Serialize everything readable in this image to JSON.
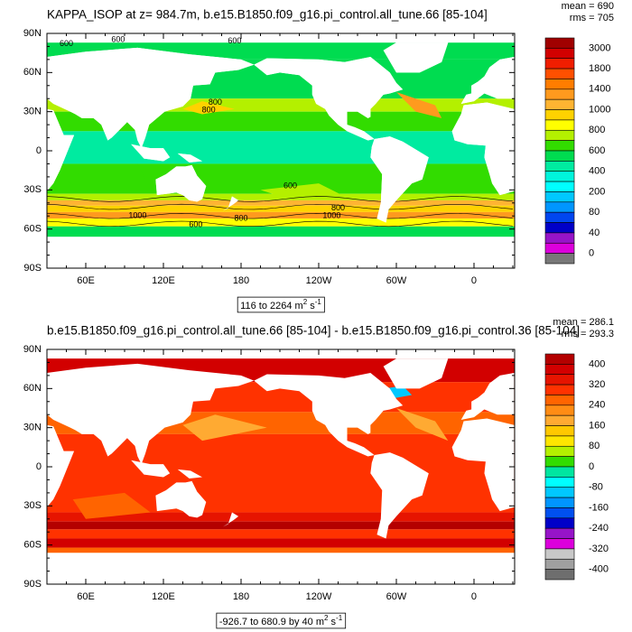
{
  "panels": [
    {
      "title": "KAPPA_ISOP at z= 984.7m, b.e15.B1850.f09_g16.pi_control.all_tune.66 [85-104]",
      "stats": [
        "mean = 690",
        "rms = 705"
      ],
      "y_labels": [
        "90N",
        "60N",
        "30N",
        "0",
        "30S",
        "60S",
        "90S"
      ],
      "x_labels": [
        "60E",
        "120E",
        "180",
        "120W",
        "60W",
        "0"
      ],
      "range_label": [
        "116 to 2264 m",
        "2",
        " s",
        "-1"
      ],
      "contour_labels": [
        "600",
        "600",
        "600",
        "800",
        "800",
        "600",
        "1000",
        "800",
        "1000",
        "800",
        "600"
      ],
      "colorbar": {
        "labels": [
          "3000",
          "1800",
          "1400",
          "1000",
          "800",
          "600",
          "400",
          "200",
          "80",
          "40",
          "0"
        ],
        "colors": [
          "#a00000",
          "#d20000",
          "#f01e00",
          "#ff5000",
          "#ff7d00",
          "#ff9a1e",
          "#ffb432",
          "#ffd200",
          "#ffff00",
          "#b4f000",
          "#32dc00",
          "#00dc50",
          "#00eba0",
          "#00f5dc",
          "#00ffff",
          "#00c8ff",
          "#0096ff",
          "#0046f0",
          "#0000c8",
          "#9614c8",
          "#dc00dc",
          "#787878"
        ]
      }
    },
    {
      "title": "b.e15.B1850.f09_g16.pi_control.all_tune.66 [85-104] - b.e15.B1850.f09_g16.pi_control.36 [85-104]",
      "stats": [
        "mean = 286.1",
        "rms = 293.3"
      ],
      "y_labels": [
        "90N",
        "60N",
        "30N",
        "0",
        "30S",
        "60S",
        "90S"
      ],
      "x_labels": [
        "60E",
        "120E",
        "180",
        "120W",
        "60W",
        "0"
      ],
      "range_label": [
        "-926.7 to 680.9 by 40 m",
        "2",
        " s",
        "-1"
      ],
      "colorbar": {
        "labels": [
          "400",
          "320",
          "240",
          "160",
          "80",
          "0",
          "-80",
          "-160",
          "-240",
          "-320",
          "-400"
        ],
        "colors": [
          "#b40000",
          "#d20000",
          "#e61400",
          "#ff3200",
          "#ff6400",
          "#ff8c14",
          "#ffaa32",
          "#ffc800",
          "#ffe600",
          "#b4f000",
          "#32dc00",
          "#00e6a0",
          "#00ffff",
          "#00c8ff",
          "#0096ff",
          "#0050f0",
          "#0000c8",
          "#9614c8",
          "#dc00dc",
          "#c8c8c8",
          "#a0a0a0",
          "#6e6e6e"
        ]
      }
    }
  ]
}
